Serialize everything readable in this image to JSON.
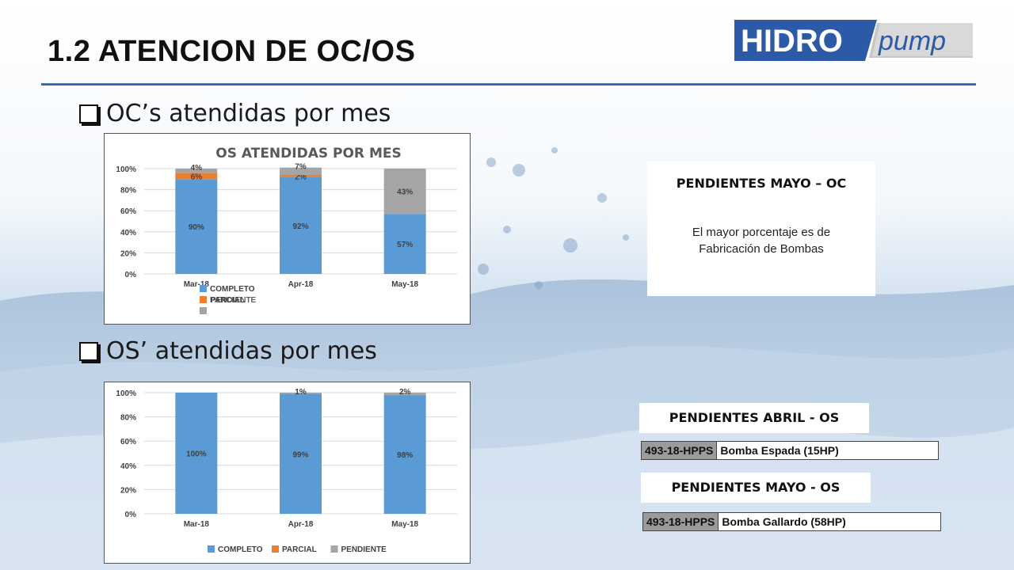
{
  "slide": {
    "title": "1.2  ATENCION DE OC/OS",
    "logo": {
      "part1": "HIDRO",
      "part2": "pump"
    },
    "bullets": {
      "oc": "OC’s atendidas por mes",
      "os": "OS’ atendidas por mes"
    },
    "colors": {
      "completo": "#5b9bd5",
      "parcial": "#ed7d31",
      "pendiente": "#a5a5a5",
      "rule": "#2b5aa0",
      "logo_blue": "#2d5aa6"
    }
  },
  "panels": {
    "pend_mayo_oc": {
      "title": "PENDIENTES MAYO – OC",
      "line1": "El mayor porcentaje es de",
      "line2": "Fabricación de Bombas"
    },
    "pend_abril_os": {
      "title": "PENDIENTES ABRIL - OS",
      "code": "493-18-HPPS",
      "desc": "Bomba Espada (15HP)"
    },
    "pend_mayo_os": {
      "title": "PENDIENTES MAYO - OS",
      "code": "493-18-HPPS",
      "desc": "Bomba Gallardo (58HP)"
    }
  },
  "chart_data": [
    {
      "type": "bar",
      "stacked": true,
      "title": "OS ATENDIDAS POR MES",
      "categories": [
        "Mar-18",
        "Apr-18",
        "May-18"
      ],
      "series": [
        {
          "name": "COMPLETO",
          "values": [
            90,
            92,
            57
          ],
          "labels": [
            "90%",
            "92%",
            "57%"
          ]
        },
        {
          "name": "PARCIAL",
          "values": [
            6,
            2,
            0
          ],
          "labels": [
            "6%",
            "2%",
            ""
          ]
        },
        {
          "name": "PENDIENTE",
          "values": [
            4,
            7,
            43
          ],
          "labels": [
            "4%",
            "7%",
            "43%"
          ]
        }
      ],
      "y_ticks": [
        "0%",
        "20%",
        "40%",
        "60%",
        "80%",
        "100%"
      ],
      "ylim": [
        0,
        100
      ],
      "legend": "bottom-left",
      "grid": true
    },
    {
      "type": "bar",
      "stacked": true,
      "title": "",
      "categories": [
        "Mar-18",
        "Apr-18",
        "May-18"
      ],
      "series": [
        {
          "name": "COMPLETO",
          "values": [
            100,
            99,
            98
          ],
          "labels": [
            "100%",
            "99%",
            "98%"
          ]
        },
        {
          "name": "PARCIAL",
          "values": [
            0,
            0,
            0
          ],
          "labels": [
            "",
            "",
            ""
          ]
        },
        {
          "name": "PENDIENTE",
          "values": [
            0,
            1,
            2
          ],
          "labels": [
            "",
            "1%",
            "2%"
          ]
        }
      ],
      "y_ticks": [
        "0%",
        "20%",
        "40%",
        "60%",
        "80%",
        "100%"
      ],
      "ylim": [
        0,
        100
      ],
      "legend": "bottom",
      "grid": true
    }
  ]
}
